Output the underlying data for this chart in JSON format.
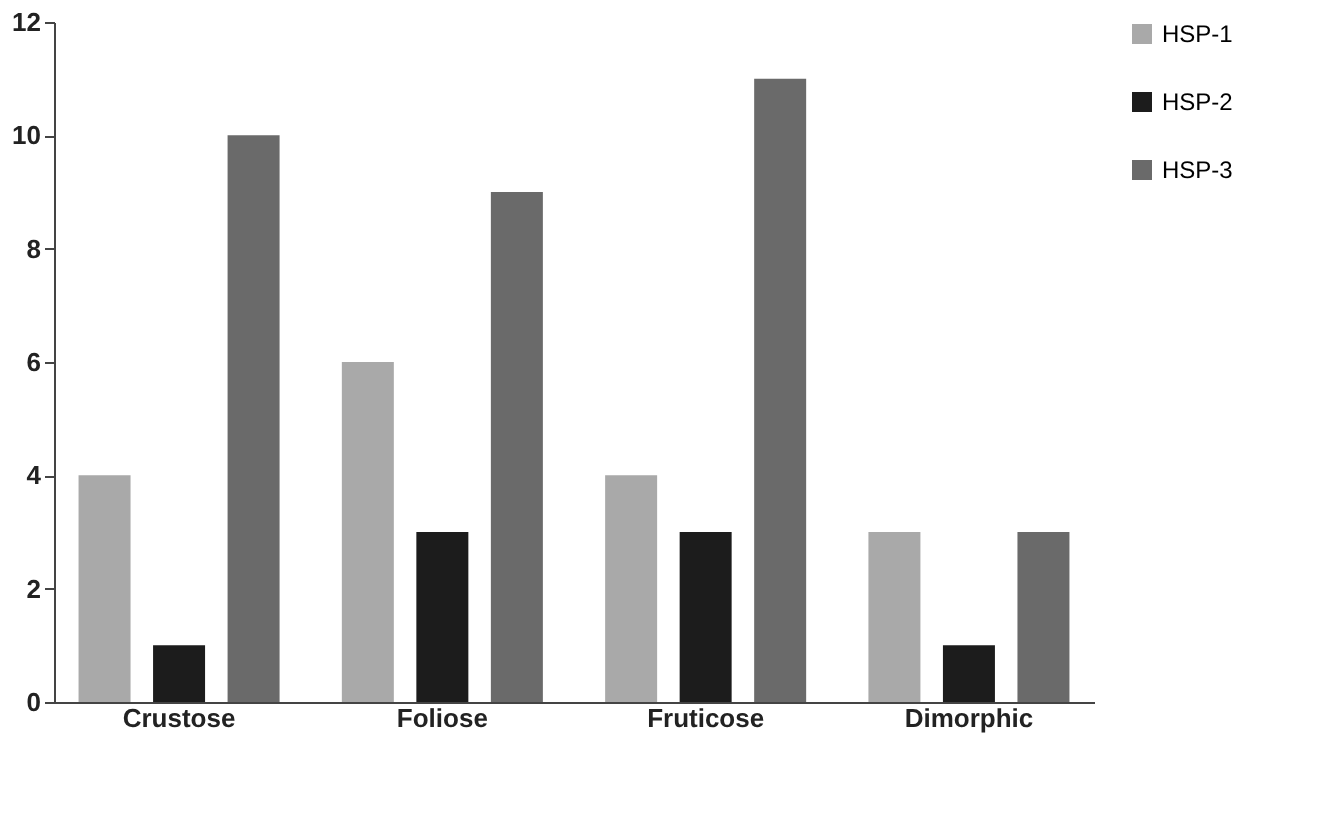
{
  "chart_data": {
    "type": "bar",
    "categories": [
      "Crustose",
      "Foliose",
      "Fruticose",
      "Dimorphic"
    ],
    "series": [
      {
        "name": "HSP-1",
        "color": "#a9a9a9",
        "values": [
          4,
          6,
          4,
          3
        ]
      },
      {
        "name": "HSP-2",
        "color": "#1c1c1c",
        "values": [
          1,
          3,
          3,
          1
        ]
      },
      {
        "name": "HSP-3",
        "color": "#6a6a6a",
        "values": [
          10,
          9,
          11,
          3
        ]
      }
    ],
    "ylim": [
      0,
      12
    ],
    "yticks": [
      0,
      2,
      4,
      6,
      8,
      10,
      12
    ],
    "grid": false,
    "legend": "right"
  }
}
